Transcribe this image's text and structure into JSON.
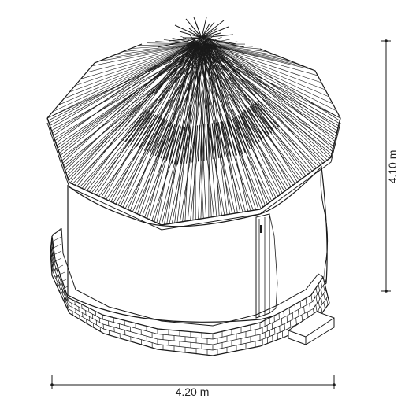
{
  "dimensions": {
    "height_label": "4.10 m",
    "width_label": "4.20 m"
  },
  "colors": {
    "line": "#1a1a1a",
    "background": "#ffffff"
  }
}
